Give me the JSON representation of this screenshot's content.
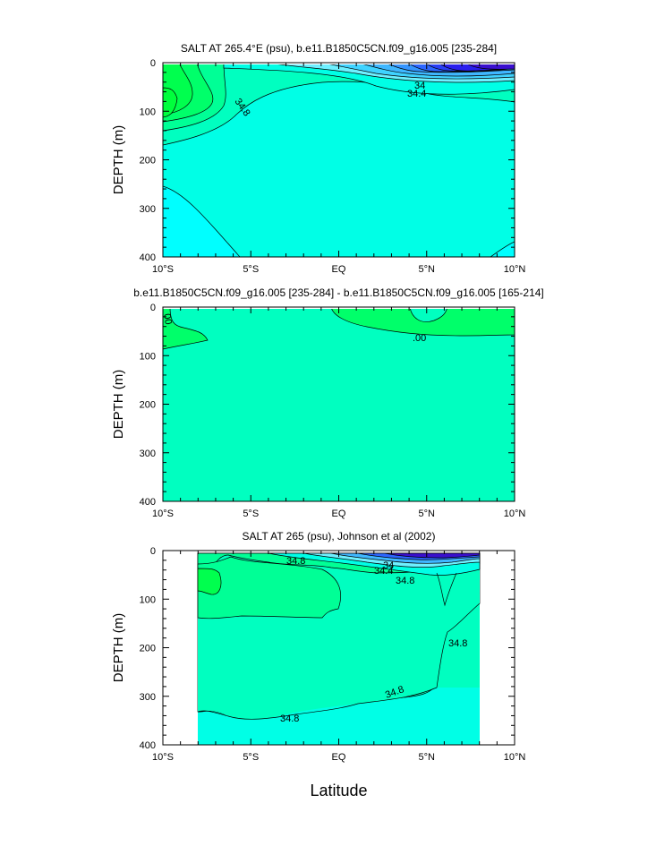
{
  "x_axis_label": "Latitude",
  "colors": {
    "cyan": "#00FFFF",
    "aqua": "#00FFE6",
    "teal_green": "#00FFC0",
    "sea_green": "#00FF96",
    "mid_green": "#00FF6A",
    "green": "#00FF3C",
    "lt_blue": "#3FB7FF",
    "blue": "#2C66FF",
    "dk_blue": "#2A1FEE",
    "indigo": "#3A0FCF"
  },
  "chart_data": [
    {
      "type": "heatmap",
      "title": "SALT AT 265.4°E (psu), b.e11.B1850C5CN.f09_g16.005 [235-284]",
      "ylabel": "DEPTH (m)",
      "xlabel": "",
      "x_ticks": [
        "10°S",
        "5°S",
        "EQ",
        "5°N",
        "10°N"
      ],
      "x_tick_values": [
        -10,
        -5,
        0,
        5,
        10
      ],
      "y_ticks": [
        "0",
        "100",
        "200",
        "300",
        "400"
      ],
      "y_tick_values": [
        0,
        100,
        200,
        300,
        400
      ],
      "xlim": [
        -10,
        10
      ],
      "ylim": [
        400,
        0
      ],
      "contour_labels": [
        {
          "text": "34",
          "x": 4.5,
          "y": 45
        },
        {
          "text": "34.4",
          "x": 4.3,
          "y": 60
        },
        {
          "text": "34.8",
          "x": -5.7,
          "y": 82
        }
      ]
    },
    {
      "type": "heatmap",
      "title": "b.e11.B1850C5CN.f09_g16.005 [235-284] - b.e11.B1850C5CN.f09_g16.005 [165-214]",
      "ylabel": "DEPTH (m)",
      "xlabel": "",
      "x_ticks": [
        "10°S",
        "5°S",
        "EQ",
        "5°N",
        "10°N"
      ],
      "x_tick_values": [
        -10,
        -5,
        0,
        5,
        10
      ],
      "y_ticks": [
        "0",
        "100",
        "200",
        "300",
        "400"
      ],
      "y_tick_values": [
        0,
        100,
        200,
        300,
        400
      ],
      "xlim": [
        -10,
        10
      ],
      "ylim": [
        400,
        0
      ],
      "contour_labels": [
        {
          "text": ".00",
          "x": 4.6,
          "y": 64
        },
        {
          "text": "00",
          "x": -9.8,
          "y": 22
        }
      ]
    },
    {
      "type": "heatmap",
      "title": "SALT AT 265 (psu), Johnson et al (2002)",
      "ylabel": "DEPTH (m)",
      "xlabel": "Latitude",
      "x_ticks": [
        "10°S",
        "5°S",
        "EQ",
        "5°N",
        "10°N"
      ],
      "x_tick_values": [
        -10,
        -5,
        0,
        5,
        10
      ],
      "y_ticks": [
        "0",
        "100",
        "200",
        "300",
        "400"
      ],
      "y_tick_values": [
        0,
        100,
        200,
        300,
        400
      ],
      "xlim": [
        -10,
        10
      ],
      "ylim": [
        400,
        0
      ],
      "data_extent_x": [
        -8,
        8
      ],
      "contour_labels": [
        {
          "text": "34.8",
          "x": -2.4,
          "y": 20
        },
        {
          "text": "34",
          "x": 2.9,
          "y": 28
        },
        {
          "text": "34.4",
          "x": 2.5,
          "y": 38
        },
        {
          "text": "34.8",
          "x": 3.7,
          "y": 62
        },
        {
          "text": "34.8",
          "x": 6.8,
          "y": 195
        },
        {
          "text": "34.8",
          "x": 3.2,
          "y": 290
        },
        {
          "text": "34.8",
          "x": -3.0,
          "y": 348
        }
      ]
    }
  ]
}
